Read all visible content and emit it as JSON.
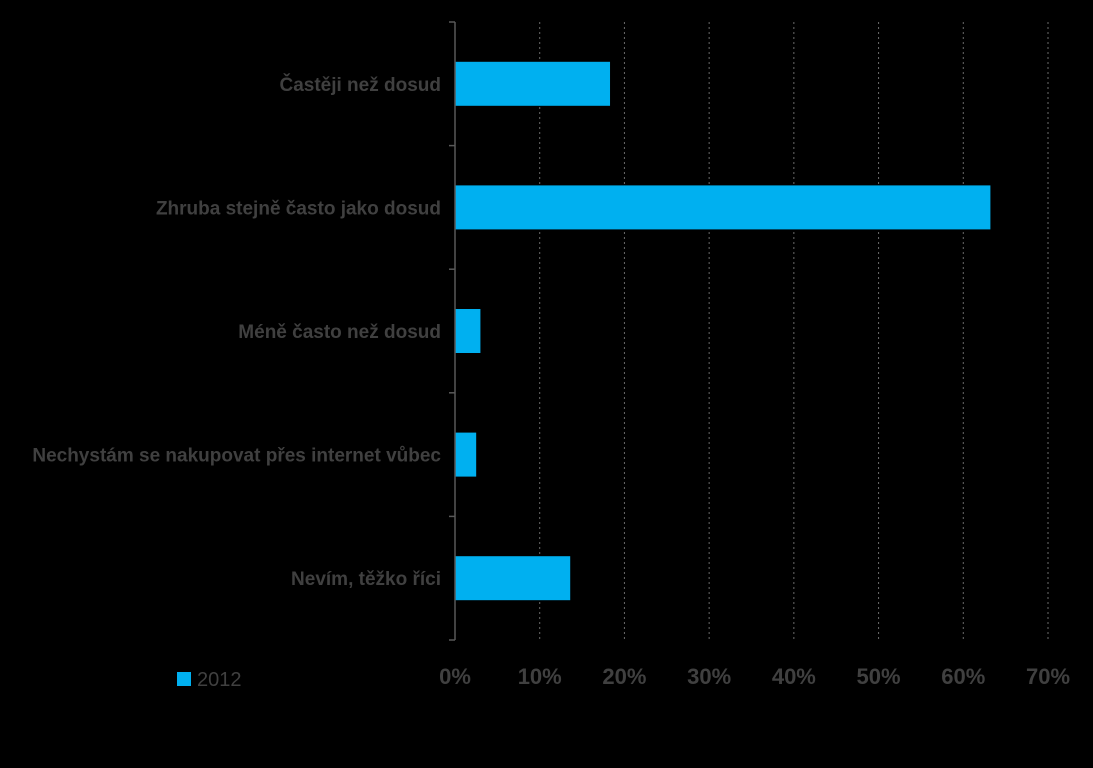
{
  "chart_data": {
    "type": "bar",
    "orientation": "horizontal",
    "categories": [
      "Častěji než dosud",
      "Zhruba stejně často jako dosud",
      "Méně často než dosud",
      "Nechystám se nakupovat přes internet vůbec",
      "Nevím, těžko říci"
    ],
    "series": [
      {
        "name": "2012",
        "values": [
          18.3,
          63.2,
          3.0,
          2.5,
          13.6
        ],
        "color": "#00B0F0"
      }
    ],
    "xlim": [
      0,
      70
    ],
    "xticks": [
      "0%",
      "10%",
      "20%",
      "30%",
      "40%",
      "50%",
      "60%",
      "70%"
    ],
    "grid": "vertical-dotted",
    "legend_position": "bottom-left",
    "title": "",
    "xlabel": "",
    "ylabel": ""
  }
}
